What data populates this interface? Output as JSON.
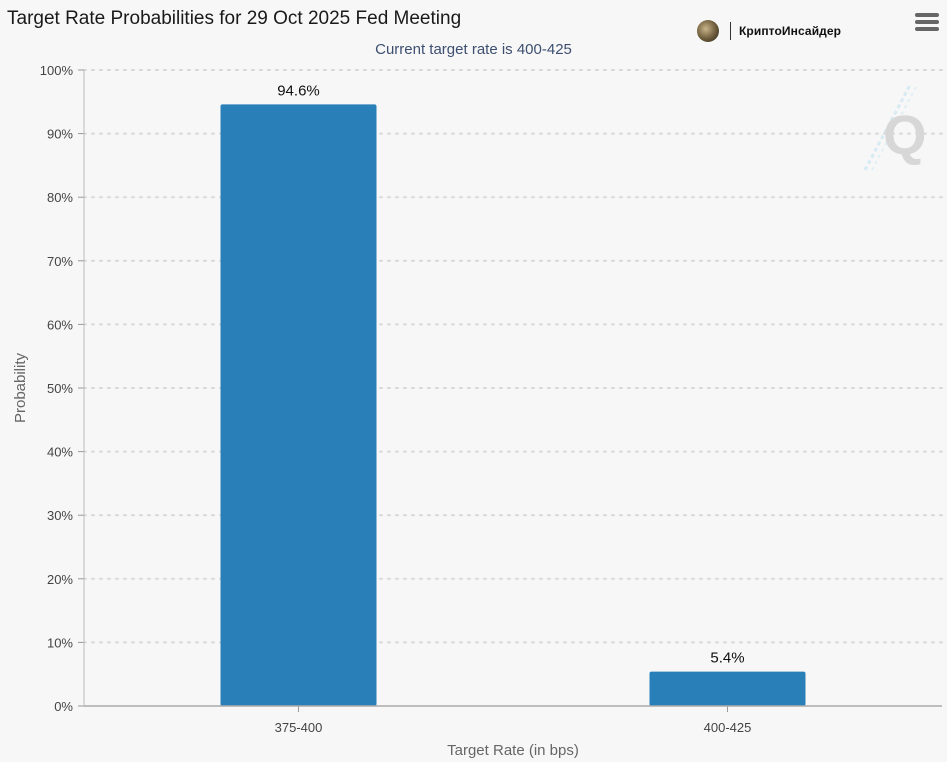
{
  "header": {
    "title": "Target Rate Probabilities for 29 Oct 2025 Fed Meeting",
    "subtitle": "Current target rate is 400-425",
    "brand_name": "КриптоИнсайдер"
  },
  "colors": {
    "bar": "#2980b9",
    "subtitle": "#3d4f70",
    "grid": "#d8d8d8"
  },
  "icons": {
    "menu": "hamburger-menu-icon",
    "brand": "brand-logo-icon",
    "watermark": "q-watermark-icon"
  },
  "chart_data": {
    "type": "bar",
    "title": "Target Rate Probabilities for 29 Oct 2025 Fed Meeting",
    "subtitle": "Current target rate is 400-425",
    "xlabel": "Target Rate (in bps)",
    "ylabel": "Probability",
    "categories": [
      "375-400",
      "400-425"
    ],
    "values": [
      94.6,
      5.4
    ],
    "data_labels": [
      "94.6%",
      "5.4%"
    ],
    "ylim": [
      0,
      100
    ],
    "yticks": [
      0,
      10,
      20,
      30,
      40,
      50,
      60,
      70,
      80,
      90,
      100
    ],
    "ytick_labels": [
      "0%",
      "10%",
      "20%",
      "30%",
      "40%",
      "50%",
      "60%",
      "70%",
      "80%",
      "90%",
      "100%"
    ],
    "grid": true,
    "legend": "none"
  }
}
